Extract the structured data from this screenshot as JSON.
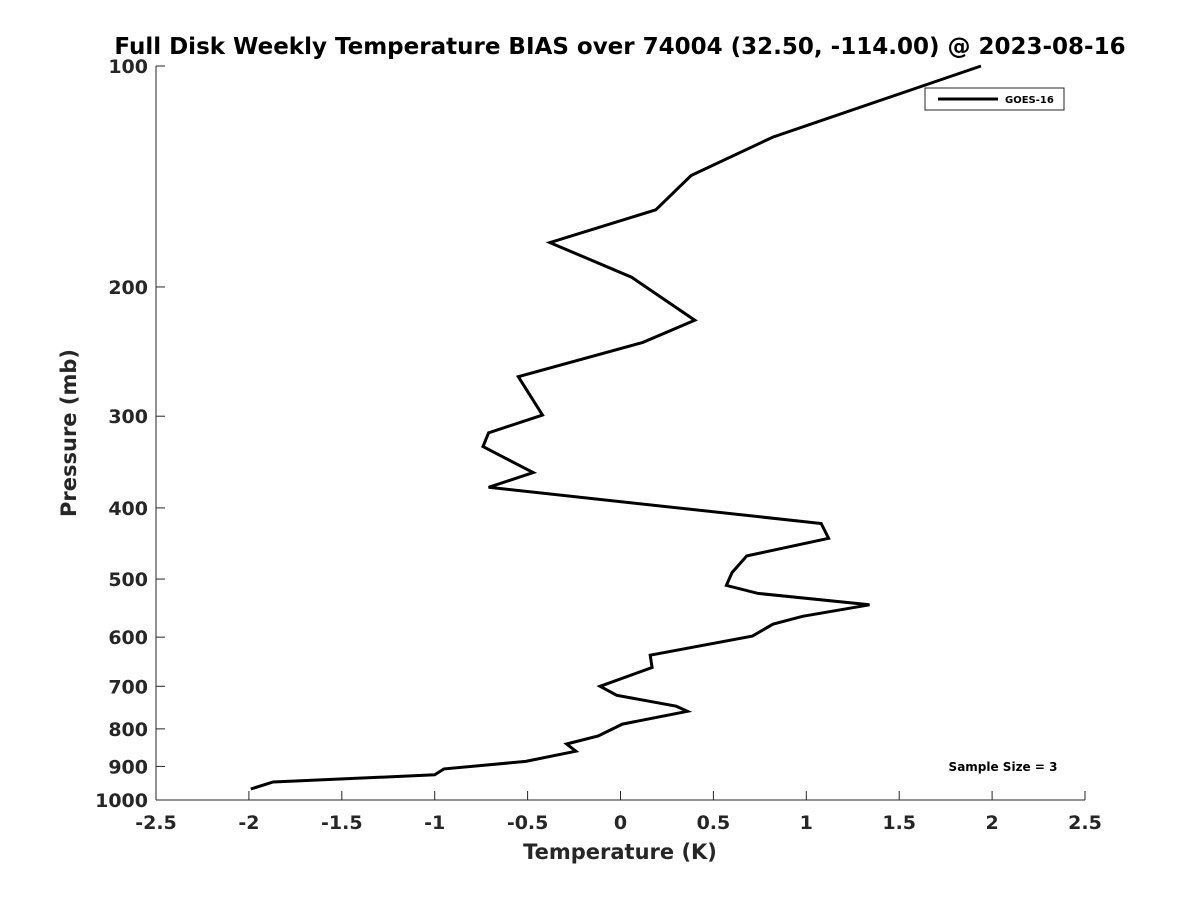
{
  "chart_data": {
    "type": "line",
    "title": "Full Disk Weekly Temperature BIAS over 74004 (32.50, -114.00) @ 2023-08-16",
    "xlabel": "Temperature (K)",
    "ylabel": "Pressure (mb)",
    "xlim": [
      -2.5,
      2.5
    ],
    "ylim": [
      100,
      1000
    ],
    "y_scale": "log",
    "y_direction": "reversed",
    "x_ticks": [
      -2.5,
      -2,
      -1.5,
      -1,
      -0.5,
      0,
      0.5,
      1,
      1.5,
      2,
      2.5
    ],
    "x_tick_labels": [
      "-2.5",
      "-2",
      "-1.5",
      "-1",
      "-0.5",
      "0",
      "0.5",
      "1",
      "1.5",
      "2",
      "2.5"
    ],
    "y_ticks": [
      100,
      200,
      300,
      400,
      500,
      600,
      700,
      800,
      900,
      1000
    ],
    "y_tick_labels": [
      "100",
      "200",
      "300",
      "400",
      "500",
      "600",
      "700",
      "800",
      "900",
      "1000"
    ],
    "grid": false,
    "legend_position": "top-right",
    "annotation": "Sample Size = 3",
    "line_color": "#000000",
    "series": [
      {
        "name": "GOES-16",
        "x": [
          1.94,
          0.82,
          0.38,
          0.19,
          -0.38,
          0.06,
          0.4,
          0.12,
          -0.55,
          -0.53,
          -0.42,
          -0.71,
          -0.74,
          -0.47,
          -0.71,
          1.08,
          1.12,
          0.68,
          0.6,
          0.57,
          0.74,
          1.34,
          0.98,
          0.82,
          0.71,
          0.16,
          0.17,
          -0.11,
          -0.02,
          0.3,
          0.36,
          0.01,
          -0.12,
          -0.29,
          -0.24,
          -0.51,
          -0.95,
          -1.0,
          -1.87,
          -1.99
        ],
        "y": [
          100,
          125,
          141,
          157,
          174,
          194,
          222,
          238,
          265,
          270,
          299,
          316,
          330,
          358,
          375,
          420,
          440,
          465,
          490,
          510,
          523,
          542,
          562,
          576,
          598,
          635,
          660,
          700,
          720,
          745,
          757,
          788,
          818,
          839,
          858,
          886,
          907,
          924,
          945,
          966
        ]
      }
    ]
  }
}
